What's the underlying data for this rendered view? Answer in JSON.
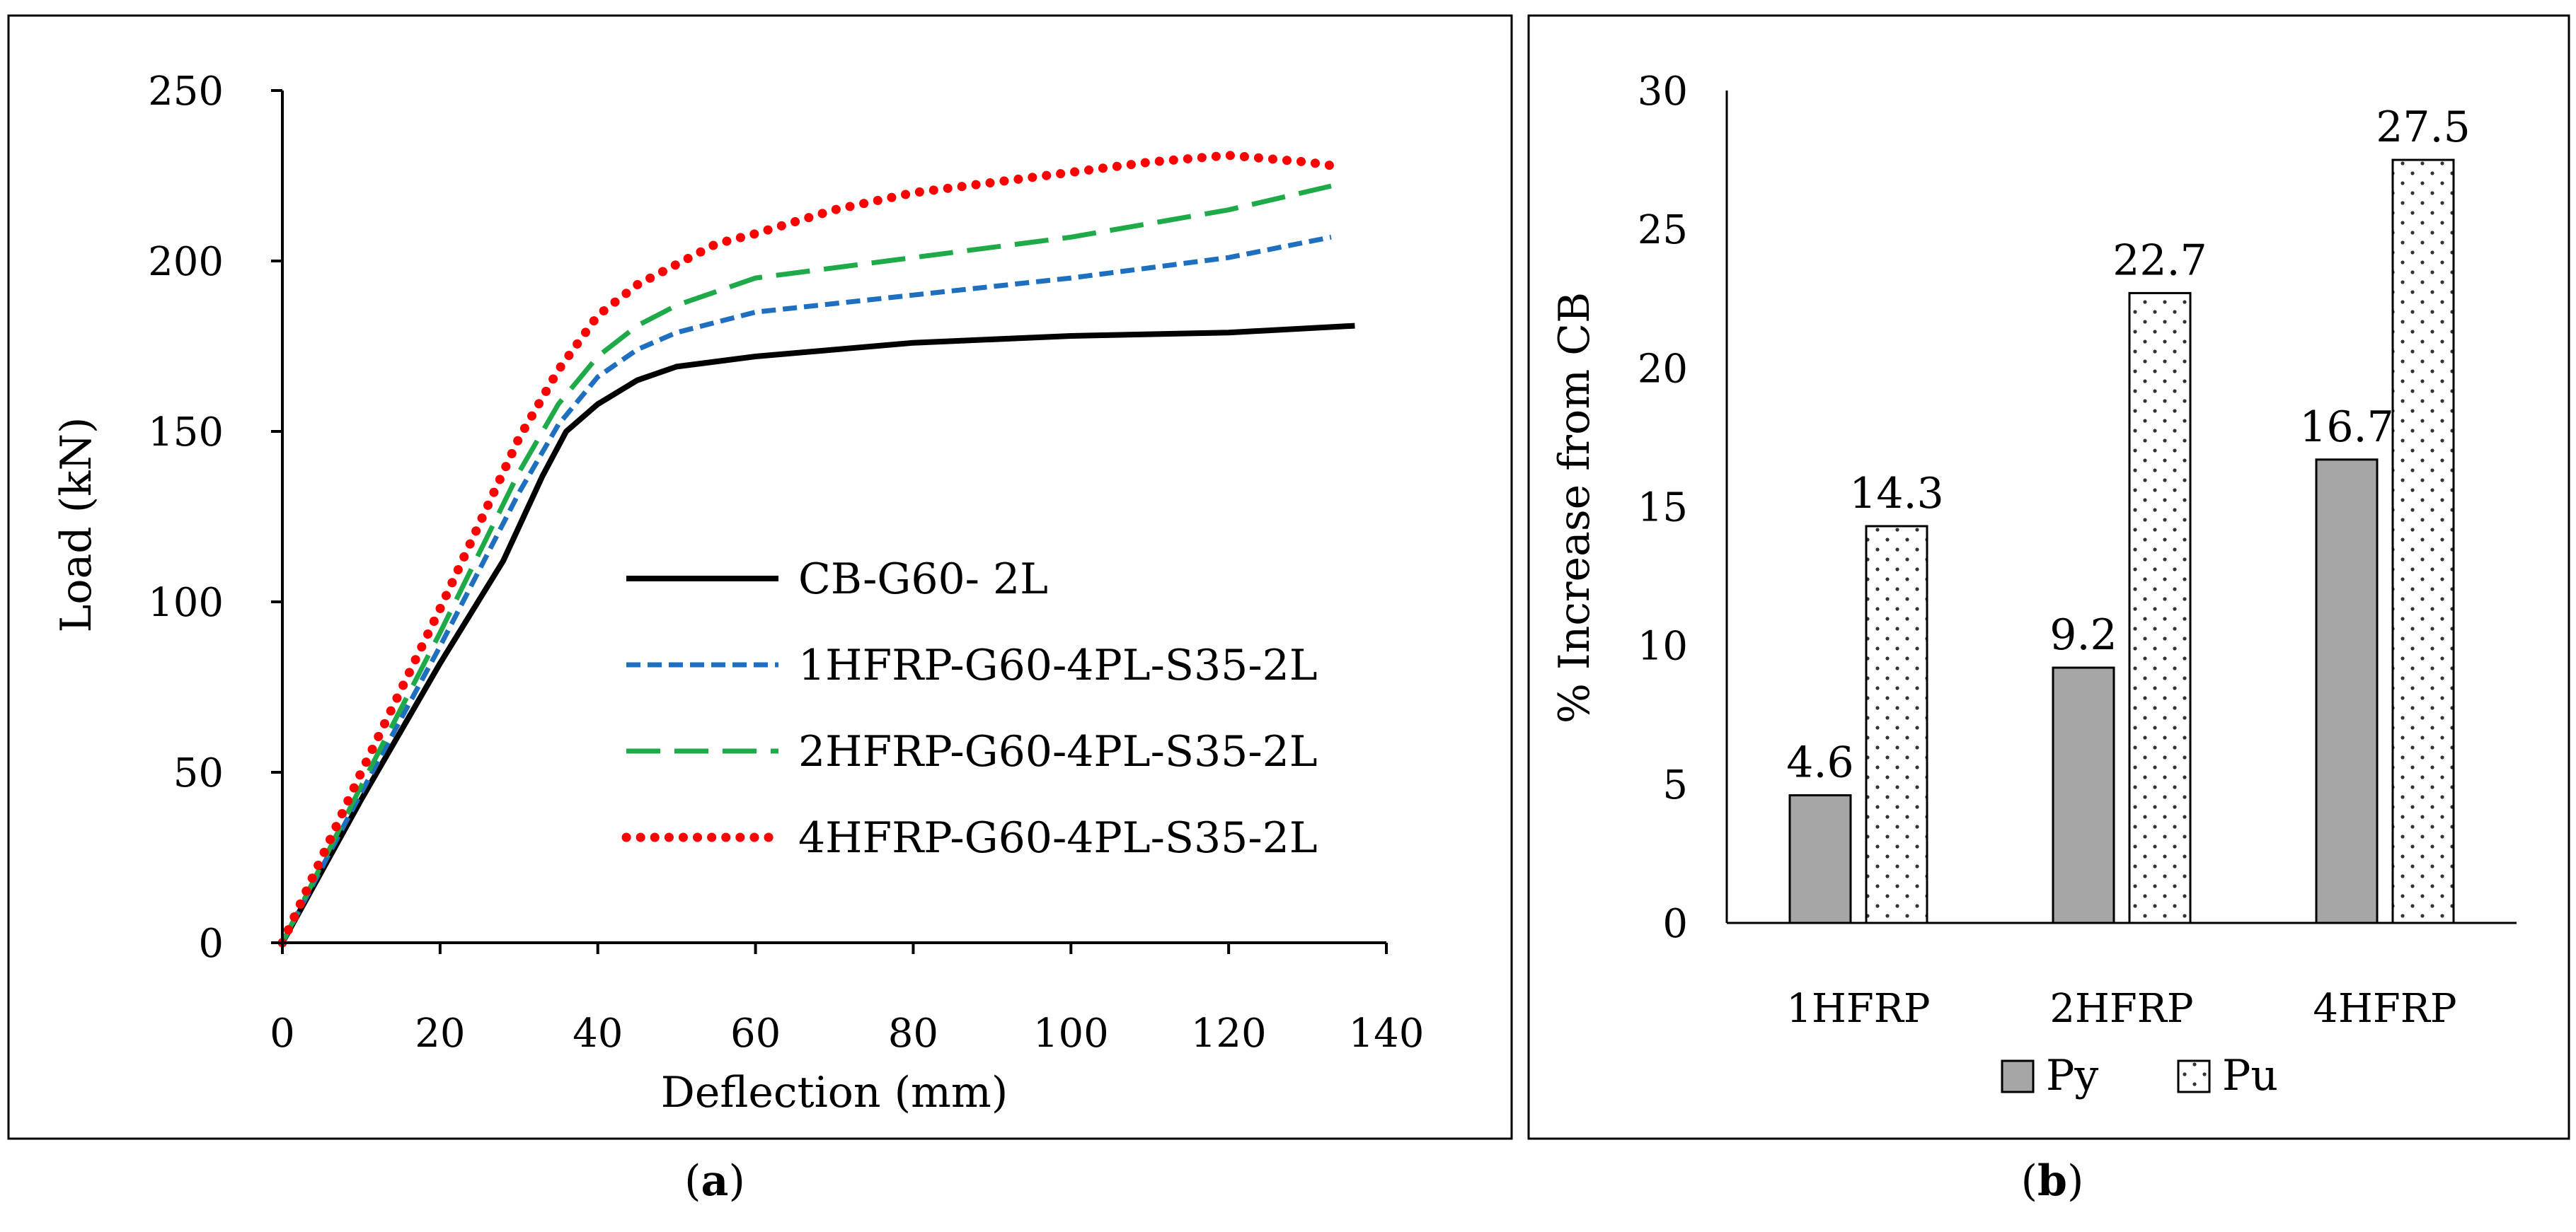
{
  "chart_data": [
    {
      "type": "line",
      "caption_open": "(",
      "caption_letter": "a",
      "caption_close": ")",
      "xlabel": "Deflection (mm)",
      "ylabel": "Load (kN)",
      "xlim": [
        0,
        140
      ],
      "ylim": [
        0,
        250
      ],
      "xticks": [
        "0",
        "20",
        "40",
        "60",
        "80",
        "100",
        "120",
        "140"
      ],
      "yticks": [
        "0",
        "50",
        "100",
        "150",
        "200",
        "250"
      ],
      "grid": false,
      "legend_position": "center-right",
      "series": [
        {
          "name": "CB-G60- 2L",
          "color": "#000000",
          "style": "solid",
          "x": [
            0,
            10,
            20,
            28,
            33,
            36,
            40,
            45,
            50,
            60,
            80,
            100,
            120,
            136
          ],
          "y": [
            0,
            42,
            82,
            112,
            137,
            150,
            158,
            165,
            169,
            172,
            176,
            178,
            179,
            181
          ]
        },
        {
          "name": "1HFRP-G60-4PL-S35-2L",
          "color": "#1f6fc0",
          "style": "short-dash",
          "x": [
            0,
            10,
            20,
            30,
            35,
            40,
            45,
            50,
            60,
            80,
            100,
            120,
            133
          ],
          "y": [
            0,
            44,
            87,
            132,
            152,
            166,
            174,
            179,
            185,
            190,
            195,
            201,
            207
          ]
        },
        {
          "name": "2HFRP-G60-4PL-S35-2L",
          "color": "#1faa4a",
          "style": "long-dash",
          "x": [
            0,
            10,
            20,
            30,
            35,
            40,
            45,
            50,
            60,
            80,
            100,
            120,
            133
          ],
          "y": [
            0,
            46,
            91,
            138,
            158,
            172,
            181,
            187,
            195,
            201,
            207,
            215,
            222
          ]
        },
        {
          "name": "4HFRP-G60-4PL-S35-2L",
          "color": "#ff0000",
          "style": "dotted",
          "x": [
            0,
            10,
            20,
            30,
            35,
            40,
            45,
            50,
            55,
            60,
            70,
            80,
            100,
            110,
            120,
            130,
            133
          ],
          "y": [
            0,
            50,
            98,
            148,
            168,
            184,
            193,
            199,
            205,
            208,
            215,
            220,
            226,
            229,
            231,
            229,
            228
          ]
        }
      ]
    },
    {
      "type": "bar",
      "caption_open": "(",
      "caption_letter": "b",
      "caption_close": ")",
      "xlabel": "",
      "ylabel": "% Increase from CB",
      "ylim": [
        0,
        30
      ],
      "yticks": [
        "0",
        "5",
        "10",
        "15",
        "20",
        "25",
        "30"
      ],
      "categories": [
        "1HFRP",
        "2HFRP",
        "4HFRP"
      ],
      "legend_position": "bottom",
      "series": [
        {
          "name": "Py",
          "color": "#a6a6a6",
          "fill": "solid",
          "values": [
            4.6,
            9.2,
            16.7
          ],
          "labels": [
            "4.6",
            "9.2",
            "16.7"
          ]
        },
        {
          "name": "Pu",
          "color": "#ffffff",
          "fill": "dotted",
          "values": [
            14.3,
            22.7,
            27.5
          ],
          "labels": [
            "14.3",
            "22.7",
            "27.5"
          ]
        }
      ]
    }
  ]
}
